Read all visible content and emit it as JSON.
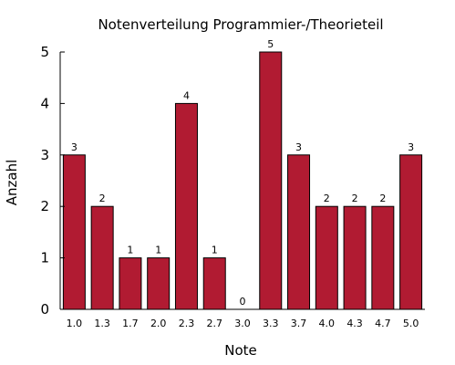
{
  "chart_data": {
    "type": "bar",
    "title": "Notenverteilung Programmier-/Theorieteil",
    "xlabel": "Note",
    "ylabel": "Anzahl",
    "categories": [
      "1.0",
      "1.3",
      "1.7",
      "2.0",
      "2.3",
      "2.7",
      "3.0",
      "3.3",
      "3.7",
      "4.0",
      "4.3",
      "4.7",
      "5.0"
    ],
    "values": [
      3,
      2,
      1,
      1,
      4,
      1,
      0,
      5,
      3,
      2,
      2,
      2,
      3
    ],
    "data_labels": [
      "3",
      "2",
      "1",
      "1",
      "4",
      "1",
      "0",
      "5",
      "3",
      "2",
      "2",
      "2",
      "3"
    ],
    "yticks": [
      "0",
      "1",
      "2",
      "3",
      "4",
      "5"
    ],
    "ylim": [
      0,
      5
    ],
    "grid": false,
    "legend": "none",
    "colors": {
      "bar": "#b11b32",
      "bar_edge": "#000000",
      "axis": "#000000"
    }
  }
}
